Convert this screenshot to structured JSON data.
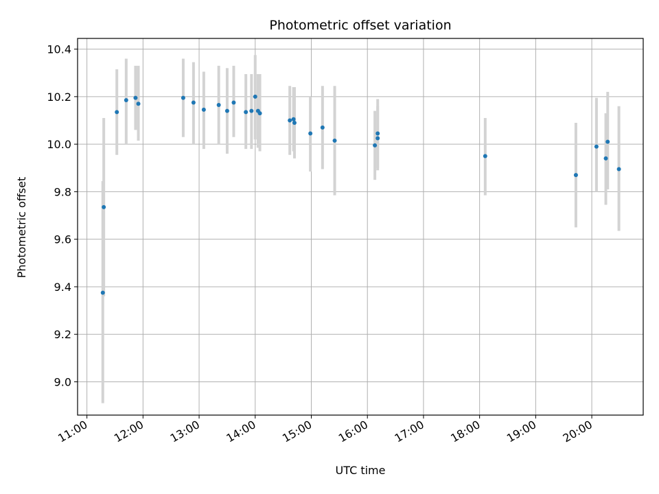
{
  "chart_data": {
    "type": "scatter",
    "title": "Photometric offset variation",
    "xlabel": "UTC time",
    "ylabel": "Photometric offset",
    "x_tick_labels": [
      "11:00",
      "12:00",
      "13:00",
      "14:00",
      "15:00",
      "16:00",
      "17:00",
      "18:00",
      "19:00",
      "20:00"
    ],
    "y_tick_labels": [
      "9.0",
      "9.2",
      "9.4",
      "9.6",
      "9.8",
      "10.0",
      "10.2",
      "10.4"
    ],
    "y_ticks": [
      9.0,
      9.2,
      9.4,
      9.6,
      9.8,
      10.0,
      10.2,
      10.4
    ],
    "xlim": [
      "10:50",
      "20:55"
    ],
    "ylim": [
      8.86,
      10.445
    ],
    "grid": true,
    "colors": {
      "point": "#1f77b4",
      "errorbar": "#d3d3d3",
      "grid": "#b0b0b0"
    },
    "points": [
      {
        "x": "11:17",
        "y": 9.375,
        "err_low": 8.91,
        "err_high": 9.845
      },
      {
        "x": "11:18",
        "y": 9.735,
        "err_low": 9.36,
        "err_high": 10.11
      },
      {
        "x": "11:32",
        "y": 10.135,
        "err_low": 9.955,
        "err_high": 10.315
      },
      {
        "x": "11:42",
        "y": 10.185,
        "err_low": 10.0,
        "err_high": 10.36
      },
      {
        "x": "11:52",
        "y": 10.195,
        "err_low": 10.06,
        "err_high": 10.33
      },
      {
        "x": "11:55",
        "y": 10.17,
        "err_low": 10.015,
        "err_high": 10.33
      },
      {
        "x": "12:43",
        "y": 10.195,
        "err_low": 10.03,
        "err_high": 10.36
      },
      {
        "x": "12:54",
        "y": 10.175,
        "err_low": 10.0,
        "err_high": 10.345
      },
      {
        "x": "13:05",
        "y": 10.145,
        "err_low": 9.98,
        "err_high": 10.305
      },
      {
        "x": "13:21",
        "y": 10.165,
        "err_low": 10.0,
        "err_high": 10.33
      },
      {
        "x": "13:30",
        "y": 10.14,
        "err_low": 9.96,
        "err_high": 10.32
      },
      {
        "x": "13:37",
        "y": 10.175,
        "err_low": 10.03,
        "err_high": 10.33
      },
      {
        "x": "13:50",
        "y": 10.135,
        "err_low": 9.98,
        "err_high": 10.295
      },
      {
        "x": "13:56",
        "y": 10.14,
        "err_low": 9.98,
        "err_high": 10.295
      },
      {
        "x": "14:00",
        "y": 10.2,
        "err_low": 10.02,
        "err_high": 10.375
      },
      {
        "x": "14:03",
        "y": 10.14,
        "err_low": 9.985,
        "err_high": 10.295
      },
      {
        "x": "14:05",
        "y": 10.13,
        "err_low": 9.97,
        "err_high": 10.295
      },
      {
        "x": "14:37",
        "y": 10.1,
        "err_low": 9.955,
        "err_high": 10.245
      },
      {
        "x": "14:41",
        "y": 10.105,
        "err_low": 9.97,
        "err_high": 10.24
      },
      {
        "x": "14:42",
        "y": 10.09,
        "err_low": 9.94,
        "err_high": 10.24
      },
      {
        "x": "14:59",
        "y": 10.045,
        "err_low": 9.885,
        "err_high": 10.2
      },
      {
        "x": "15:12",
        "y": 10.07,
        "err_low": 9.895,
        "err_high": 10.245
      },
      {
        "x": "15:25",
        "y": 10.015,
        "err_low": 9.785,
        "err_high": 10.245
      },
      {
        "x": "16:08",
        "y": 9.995,
        "err_low": 9.85,
        "err_high": 10.14
      },
      {
        "x": "16:11",
        "y": 10.045,
        "err_low": 9.9,
        "err_high": 10.19
      },
      {
        "x": "16:11",
        "y": 10.025,
        "err_low": 9.89,
        "err_high": 10.16
      },
      {
        "x": "18:06",
        "y": 9.95,
        "err_low": 9.785,
        "err_high": 10.11
      },
      {
        "x": "19:43",
        "y": 9.87,
        "err_low": 9.65,
        "err_high": 10.09
      },
      {
        "x": "20:05",
        "y": 9.99,
        "err_low": 9.8,
        "err_high": 10.195
      },
      {
        "x": "20:15",
        "y": 9.94,
        "err_low": 9.745,
        "err_high": 10.13
      },
      {
        "x": "20:17",
        "y": 10.01,
        "err_low": 9.81,
        "err_high": 10.22
      },
      {
        "x": "20:29",
        "y": 9.895,
        "err_low": 9.635,
        "err_high": 10.16
      }
    ]
  }
}
